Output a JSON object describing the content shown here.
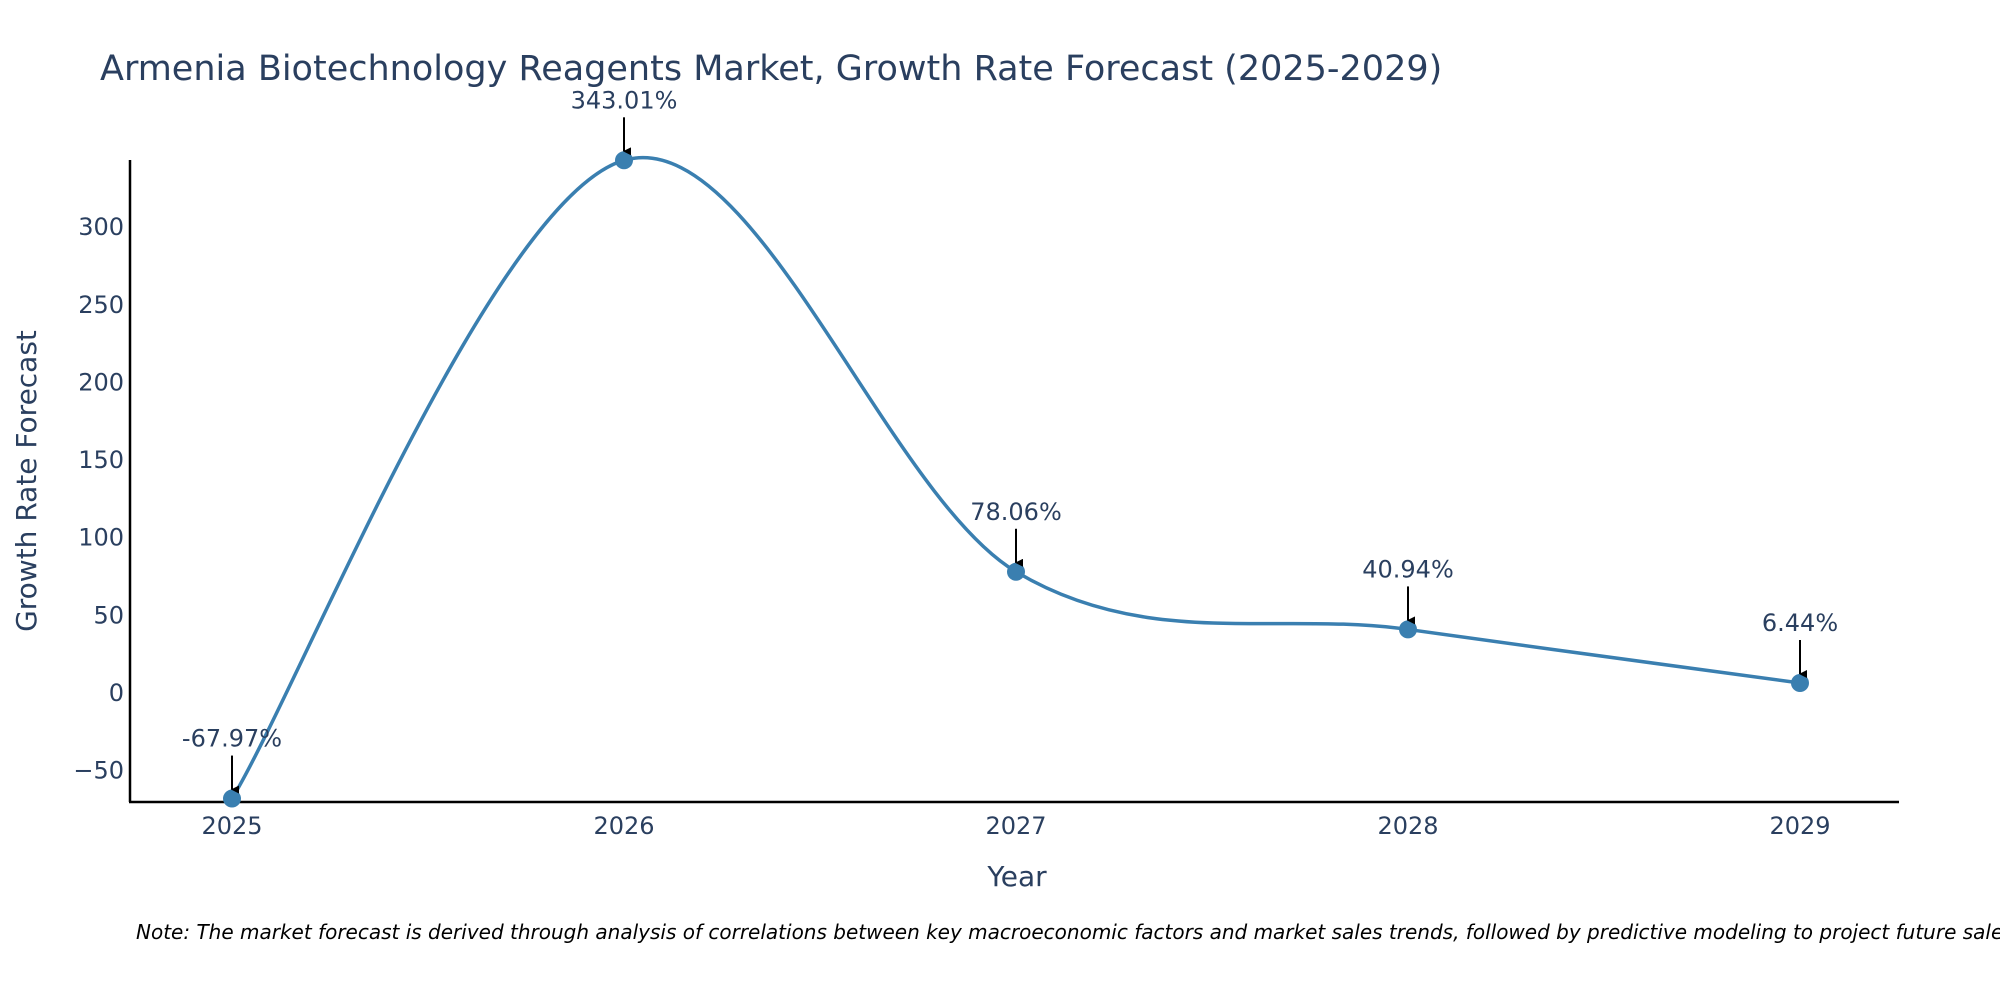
{
  "chart_data": {
    "type": "line",
    "title": "Armenia Biotechnology Reagents Market, Growth Rate Forecast (2025-2029)",
    "xlabel": "Year",
    "ylabel": "Growth Rate Forecast",
    "categories": [
      "2025",
      "2026",
      "2027",
      "2028",
      "2029"
    ],
    "values": [
      -67.97,
      343.01,
      78.06,
      40.94,
      6.44
    ],
    "data_labels": [
      "-67.97%",
      "343.01%",
      "78.06%",
      "40.94%",
      "6.44%"
    ],
    "y_ticks": [
      -50,
      0,
      50,
      100,
      150,
      200,
      250,
      300
    ],
    "y_tick_labels": [
      "−50",
      "0",
      "50",
      "100",
      "150",
      "200",
      "250",
      "300"
    ],
    "ylim": [
      -70,
      345
    ],
    "grid": false,
    "line_shape": "spline",
    "colors": {
      "line": "#3a7fb0",
      "marker": "#3a7fb0",
      "axis": "#000000",
      "text": "#2a3f5f"
    }
  },
  "note": "Note: The market forecast is derived through analysis of correlations between key macroeconomic factors and market sales trends, followed by predictive modeling to project future sales."
}
